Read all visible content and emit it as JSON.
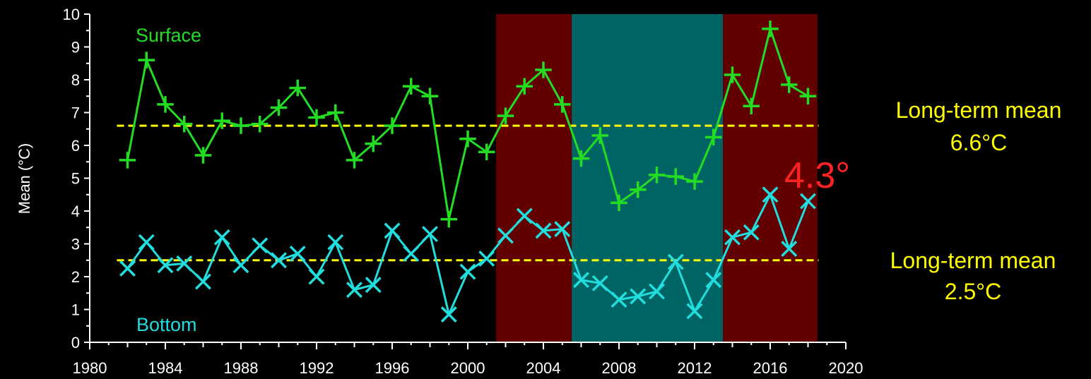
{
  "chart_data": {
    "type": "line",
    "ylabel": "Mean (°C)",
    "xlim": [
      1980,
      2020
    ],
    "ylim": [
      0,
      10
    ],
    "x_ticks": [
      1980,
      1984,
      1988,
      1992,
      1996,
      2000,
      2004,
      2008,
      2012,
      2016,
      2020
    ],
    "y_ticks": [
      0,
      1,
      2,
      3,
      4,
      5,
      6,
      7,
      8,
      9,
      10
    ],
    "grid": false,
    "periods": [
      {
        "start": 2001.5,
        "end": 2005.5,
        "color": "#620000"
      },
      {
        "start": 2005.5,
        "end": 2013.5,
        "color": "#006464"
      },
      {
        "start": 2013.5,
        "end": 2018.5,
        "color": "#620000"
      }
    ],
    "series": [
      {
        "name": "Surface",
        "color": "#22dd22",
        "marker": "plus",
        "mean": 6.6,
        "x": [
          1982,
          1983,
          1984,
          1985,
          1986,
          1987,
          1988,
          1989,
          1990,
          1991,
          1992,
          1993,
          1994,
          1995,
          1996,
          1997,
          1998,
          1999,
          2000,
          2001,
          2002,
          2003,
          2004,
          2005,
          2006,
          2007,
          2008,
          2009,
          2010,
          2011,
          2012,
          2013,
          2014,
          2015,
          2016,
          2017,
          2018
        ],
        "values": [
          5.55,
          8.6,
          7.25,
          6.65,
          5.7,
          6.75,
          6.6,
          6.65,
          7.15,
          7.75,
          6.85,
          7.0,
          5.55,
          6.05,
          6.6,
          7.8,
          7.5,
          3.75,
          6.2,
          5.8,
          6.9,
          7.8,
          8.3,
          7.25,
          5.6,
          6.3,
          4.25,
          4.65,
          5.1,
          5.05,
          4.9,
          6.25,
          8.15,
          7.2,
          9.55,
          7.85,
          7.5
        ]
      },
      {
        "name": "Bottom",
        "color": "#22dddd",
        "marker": "x",
        "mean": 2.5,
        "x": [
          1982,
          1983,
          1984,
          1985,
          1986,
          1987,
          1988,
          1989,
          1990,
          1991,
          1992,
          1993,
          1994,
          1995,
          1996,
          1997,
          1998,
          1999,
          2000,
          2001,
          2002,
          2003,
          2004,
          2005,
          2006,
          2007,
          2008,
          2009,
          2010,
          2011,
          2012,
          2013,
          2014,
          2015,
          2016,
          2017,
          2018
        ],
        "values": [
          2.25,
          3.05,
          2.35,
          2.4,
          1.85,
          3.2,
          2.35,
          2.95,
          2.5,
          2.7,
          2.0,
          3.05,
          1.6,
          1.75,
          3.4,
          2.7,
          3.3,
          0.85,
          2.15,
          2.55,
          3.25,
          3.85,
          3.4,
          3.45,
          1.9,
          1.8,
          1.3,
          1.4,
          1.55,
          2.45,
          0.95,
          1.9,
          3.2,
          3.35,
          4.5,
          2.85,
          4.3
        ]
      }
    ],
    "mean_line_color": "#ffff00",
    "annotations": {
      "surface_mean_line1": "Long-term mean",
      "surface_mean_line2": "6.6°C",
      "bottom_mean_line1": "Long-term mean",
      "bottom_mean_line2": "2.5°C",
      "callout": "4.3°",
      "callout_color": "#ff2222"
    }
  }
}
